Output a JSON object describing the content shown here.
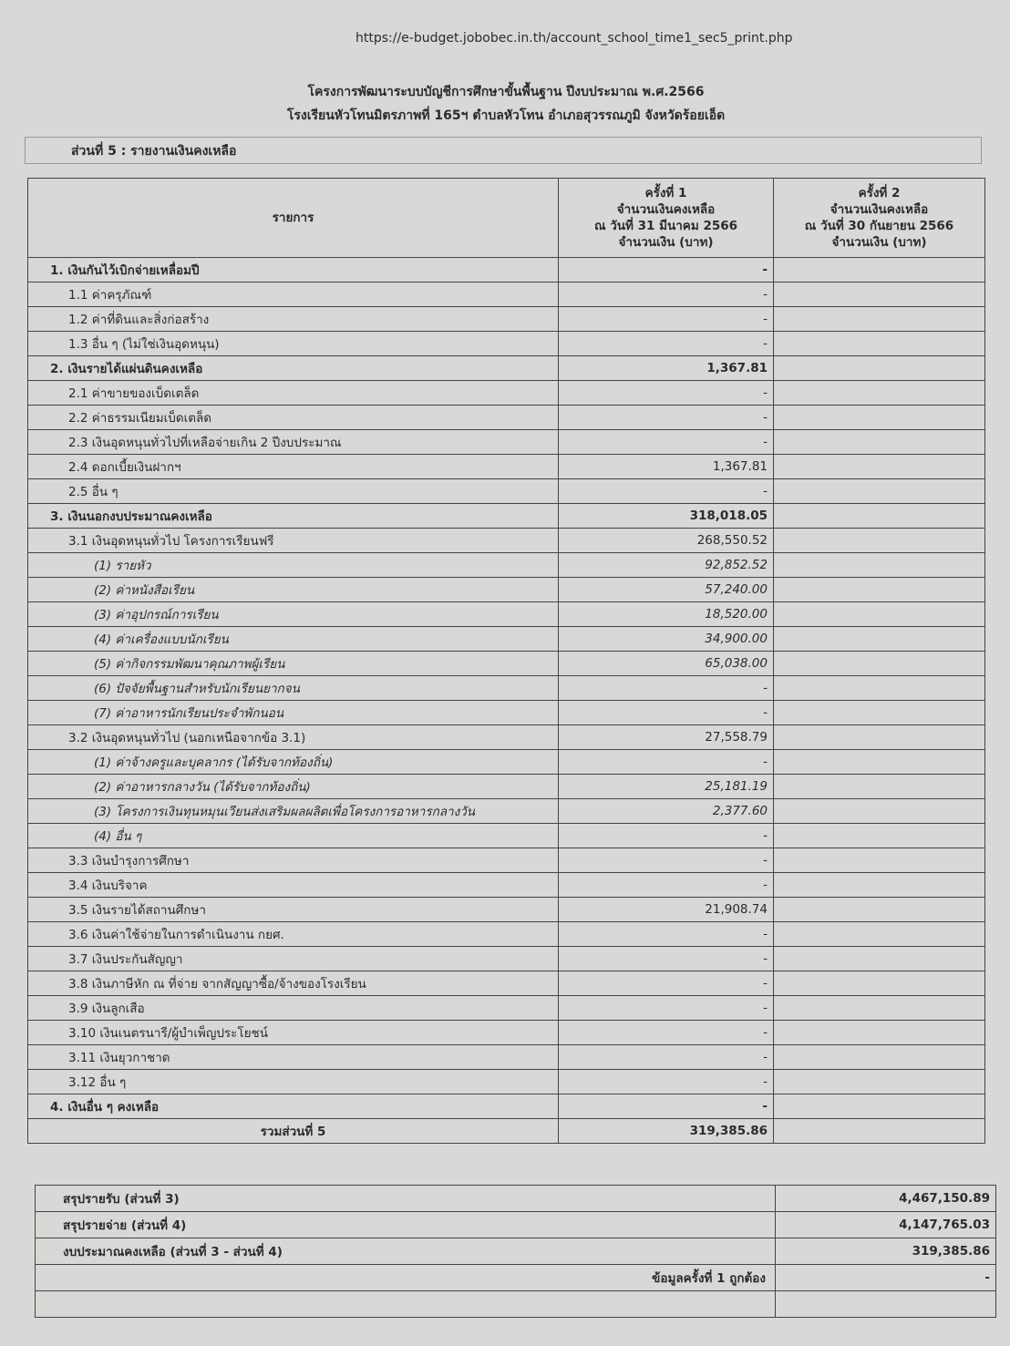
{
  "url": "https://e-budget.jobobec.in.th/account_school_time1_sec5_print.php",
  "header": {
    "title": "โครงการพัฒนาระบบบัญชีการศึกษาขั้นพื้นฐาน ปีงบประมาณ พ.ศ.2566",
    "school": "โรงเรียนหัวโทนมิตรภาพที่ 165ฯ ตำบลหัวโทน อำเภอสุวรรณภูมิ จังหวัดร้อยเอ็ด"
  },
  "section": "ส่วนที่ 5 : รายงานเงินคงเหลือ",
  "table": {
    "columns": {
      "item": "รายการ",
      "time_1": [
        "ครั้งที่ 1",
        "จำนวนเงินคงเหลือ",
        "ณ วันที่ 31 มีนาคม 2566",
        "จำนวนเงิน (บาท)"
      ],
      "time_2": [
        "ครั้งที่ 2",
        "จำนวนเงินคงเหลือ",
        "ณ วันที่ 30 กันยายน 2566",
        "จำนวนเงิน (บาท)"
      ]
    },
    "rows": [
      {
        "label": "1. เงินกันไว้เบิกจ่ายเหลื่อมปี",
        "amount_1": "-"
      },
      {
        "label": "1.1 ค่าครุภัณฑ์",
        "amount_1": "-"
      },
      {
        "label": "1.2 ค่าที่ดินและสิ่งก่อสร้าง",
        "amount_1": "-"
      },
      {
        "label": "1.3 อื่น ๆ (ไม่ใช่เงินอุดหนุน)",
        "amount_1": "-"
      },
      {
        "label": "2. เงินรายได้แผ่นดินคงเหลือ",
        "amount_1": "1,367.81"
      },
      {
        "label": "2.1 ค่าขายของเบ็ดเตล็ด",
        "amount_1": "-"
      },
      {
        "label": "2.2 ค่าธรรมเนียมเบ็ดเตล็ด",
        "amount_1": "-"
      },
      {
        "label": "2.3 เงินอุดหนุนทั่วไปที่เหลือจ่ายเกิน 2 ปีงบประมาณ",
        "amount_1": "-"
      },
      {
        "label": "2.4 ดอกเบี้ยเงินฝากฯ",
        "amount_1": "1,367.81"
      },
      {
        "label": "2.5 อื่น ๆ",
        "amount_1": "-"
      },
      {
        "label": "3. เงินนอกงบประมาณคงเหลือ",
        "amount_1": "318,018.05"
      },
      {
        "label": "3.1 เงินอุดหนุนทั่วไป โครงการเรียนฟรี",
        "amount_1": "268,550.52"
      },
      {
        "label": "(1) รายหัว",
        "amount_1": "92,852.52"
      },
      {
        "label": "(2) ค่าหนังสือเรียน",
        "amount_1": "57,240.00"
      },
      {
        "label": "(3) ค่าอุปกรณ์การเรียน",
        "amount_1": "18,520.00"
      },
      {
        "label": "(4) ค่าเครื่องแบบนักเรียน",
        "amount_1": "34,900.00"
      },
      {
        "label": "(5) ค่ากิจกรรมพัฒนาคุณภาพผู้เรียน",
        "amount_1": "65,038.00"
      },
      {
        "label": "(6) ปัจจัยพื้นฐานสำหรับนักเรียนยากจน",
        "amount_1": "-"
      },
      {
        "label": "(7) ค่าอาหารนักเรียนประจำพักนอน",
        "amount_1": "-"
      },
      {
        "label": "3.2 เงินอุดหนุนทั่วไป (นอกเหนือจากข้อ 3.1)",
        "amount_1": "27,558.79"
      },
      {
        "label": "(1) ค่าจ้างครูและบุคลากร (ได้รับจากท้องถิ่น)",
        "amount_1": "-"
      },
      {
        "label": "(2) ค่าอาหารกลางวัน (ได้รับจากท้องถิ่น)",
        "amount_1": "25,181.19"
      },
      {
        "label": "(3) โครงการเงินทุนหมุนเวียนส่งเสริมผลผลิตเพื่อโครงการอาหารกลางวัน",
        "amount_1": "2,377.60"
      },
      {
        "label": "(4) อื่น ๆ",
        "amount_1": "-"
      },
      {
        "label": "3.3 เงินบำรุงการศึกษา",
        "amount_1": "-"
      },
      {
        "label": "3.4 เงินบริจาค",
        "amount_1": "-"
      },
      {
        "label": "3.5 เงินรายได้สถานศึกษา",
        "amount_1": "21,908.74"
      },
      {
        "label": "3.6 เงินค่าใช้จ่ายในการดำเนินงาน กยศ.",
        "amount_1": "-"
      },
      {
        "label": "3.7 เงินประกันสัญญา",
        "amount_1": "-"
      },
      {
        "label": "3.8 เงินภาษีหัก ณ ที่จ่าย จากสัญญาซื้อ/จ้างของโรงเรียน",
        "amount_1": "-"
      },
      {
        "label": "3.9 เงินลูกเสือ",
        "amount_1": "-"
      },
      {
        "label": "3.10 เงินเนตรนารี/ผู้บำเพ็ญประโยชน์",
        "amount_1": "-"
      },
      {
        "label": "3.11 เงินยุวกาชาด",
        "amount_1": "-"
      },
      {
        "label": "3.12 อื่น ๆ",
        "amount_1": "-"
      },
      {
        "label": "4. เงินอื่น ๆ คงเหลือ",
        "amount_1": "-"
      }
    ],
    "total": {
      "label": "รวมส่วนที่ 5",
      "amount_1": "319,385.86"
    }
  },
  "summary": [
    {
      "label": "สรุปรายรับ (ส่วนที่ 3)",
      "amount_1": "4,467,150.89"
    },
    {
      "label": "สรุปรายจ่าย (ส่วนที่ 4)",
      "amount_1": "4,147,765.03"
    },
    {
      "label": "งบประมาณคงเหลือ (ส่วนที่ 3 - ส่วนที่ 4)",
      "amount_1": "319,385.86"
    },
    {
      "label": "ข้อมูลครั้งที่ 1 ถูกต้อง",
      "amount_1": "-"
    }
  ]
}
